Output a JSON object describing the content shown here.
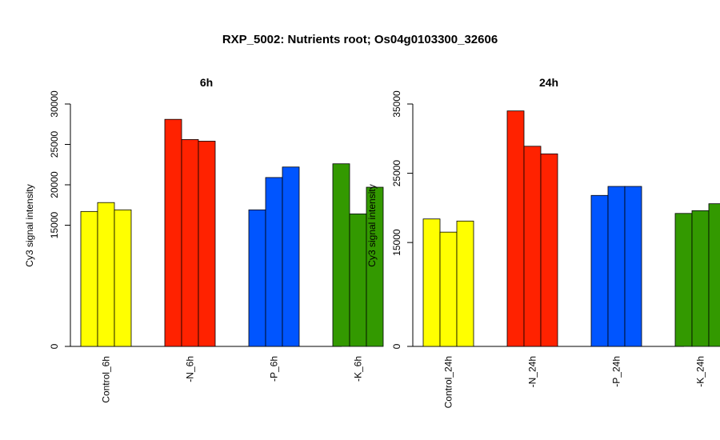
{
  "figure_title": "RXP_5002: Nutrients root; Os04g0103300_32606",
  "chart_data": [
    {
      "type": "bar",
      "title": "6h",
      "ylabel": "Cy3 signal intensity",
      "xlabel": "",
      "ylim": [
        0,
        30000
      ],
      "yticks": [
        0,
        15000,
        20000,
        25000,
        30000
      ],
      "categories": [
        "Control_6h",
        "-N_6h",
        "-P_6h",
        "-K_6h"
      ],
      "group_colors": [
        "#ffff00",
        "#ff2200",
        "#0055ff",
        "#339900"
      ],
      "replicates": [
        [
          16700,
          17800,
          16900
        ],
        [
          28100,
          25600,
          25400
        ],
        [
          16900,
          20900,
          22200
        ],
        [
          22600,
          16400,
          19700
        ]
      ]
    },
    {
      "type": "bar",
      "title": "24h",
      "ylabel": "Cy3 signal intensity",
      "xlabel": "",
      "ylim": [
        0,
        35000
      ],
      "yticks": [
        0,
        15000,
        25000,
        35000
      ],
      "categories": [
        "Control_24h",
        "-N_24h",
        "-P_24h",
        "-K_24h"
      ],
      "group_colors": [
        "#ffff00",
        "#ff2200",
        "#0055ff",
        "#339900"
      ],
      "replicates": [
        [
          18400,
          16500,
          18100
        ],
        [
          34000,
          28900,
          27800
        ],
        [
          21800,
          23100,
          23100
        ],
        [
          19200,
          19600,
          20600
        ]
      ]
    }
  ]
}
